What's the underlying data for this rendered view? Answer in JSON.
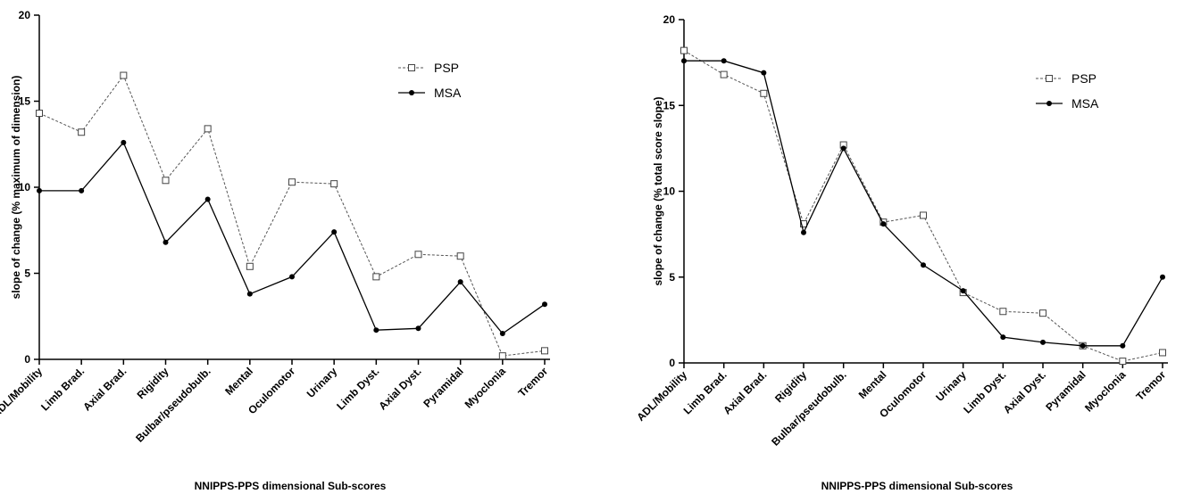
{
  "chart_data": [
    {
      "type": "line",
      "title": "",
      "xlabel": "NNIPPS-PPS dimensional Sub-scores",
      "ylabel": "slope of change (% maximum of dimension)",
      "ylim": [
        0,
        20
      ],
      "yticks": [
        0,
        5,
        10,
        15,
        20
      ],
      "grid": false,
      "legend_position": "top-right",
      "categories": [
        "ADL/Mobility",
        "Limb Brad.",
        "Axial Brad.",
        "Rigidity",
        "Bulbar/pseudobulb.",
        "Mental",
        "Oculomotor",
        "Urinary",
        "Limb Dyst.",
        "Axial Dyst.",
        "Pyramidal",
        "Myoclonia",
        "Tremor"
      ],
      "series": [
        {
          "name": "PSP",
          "style": "dashed",
          "marker": "open-square",
          "color": "#555555",
          "values": [
            14.3,
            13.2,
            16.5,
            10.4,
            13.4,
            5.4,
            10.3,
            10.2,
            4.8,
            6.1,
            6.0,
            0.2,
            0.5
          ]
        },
        {
          "name": "MSA",
          "style": "solid",
          "marker": "filled-circle",
          "color": "#000000",
          "values": [
            9.8,
            9.8,
            12.6,
            6.8,
            9.3,
            3.8,
            4.8,
            7.4,
            1.7,
            1.8,
            4.5,
            1.5,
            3.2
          ]
        }
      ]
    },
    {
      "type": "line",
      "title": "",
      "xlabel": "NNIPPS-PPS dimensional Sub-scores",
      "ylabel": "slope of change (% total score slope)",
      "ylim": [
        0,
        20
      ],
      "yticks": [
        0,
        5,
        10,
        15,
        20
      ],
      "grid": false,
      "legend_position": "top-right",
      "categories": [
        "ADL/Mobility",
        "Limb Brad.",
        "Axial Brad.",
        "Rigidity",
        "Bulbar/pseudobulb.",
        "Mental",
        "Oculomotor",
        "Urinary",
        "Limb Dyst.",
        "Axial Dyst.",
        "Pyramidal",
        "Myoclonia",
        "Tremor"
      ],
      "series": [
        {
          "name": "PSP",
          "style": "dashed",
          "marker": "open-square",
          "color": "#555555",
          "values": [
            18.2,
            16.8,
            15.7,
            8.1,
            12.7,
            8.2,
            8.6,
            4.1,
            3.0,
            2.9,
            1.0,
            0.1,
            0.6
          ]
        },
        {
          "name": "MSA",
          "style": "solid",
          "marker": "filled-circle",
          "color": "#000000",
          "values": [
            17.6,
            17.6,
            16.9,
            7.6,
            12.5,
            8.1,
            5.7,
            4.2,
            1.5,
            1.2,
            1.0,
            1.0,
            5.0
          ]
        }
      ]
    }
  ]
}
